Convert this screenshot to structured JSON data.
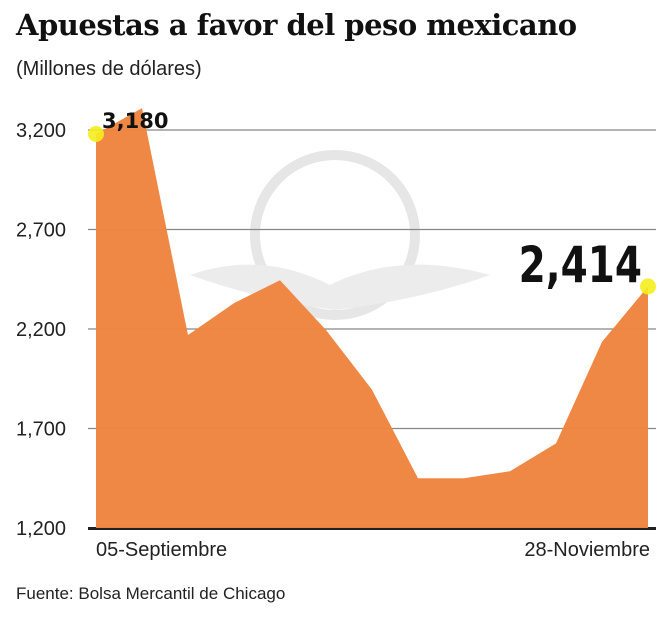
{
  "chart_data": {
    "type": "area",
    "title": "Apuestas a favor del peso mexicano",
    "subtitle": "(Millones de dólares)",
    "source": "Fuente: Bolsa Mercantil de Chicago",
    "x_labels": [
      "05-Septiembre",
      "28-Noviembre"
    ],
    "values": [
      3180,
      3310,
      2170,
      2330,
      2445,
      2195,
      1895,
      1450,
      1450,
      1485,
      1625,
      2135,
      2414
    ],
    "ylim": [
      1200,
      3200
    ],
    "yticks": [
      3200,
      2700,
      2200,
      1700,
      1200
    ],
    "ytick_labels": [
      "3,200",
      "2,700",
      "2,200",
      "1,700",
      "1,200"
    ],
    "annotations": {
      "first": "3,180",
      "last": "2,414"
    },
    "grid": true,
    "colors": {
      "fill": "#F0843F",
      "marker": "#F5EE1E",
      "grid": "#888888"
    }
  }
}
